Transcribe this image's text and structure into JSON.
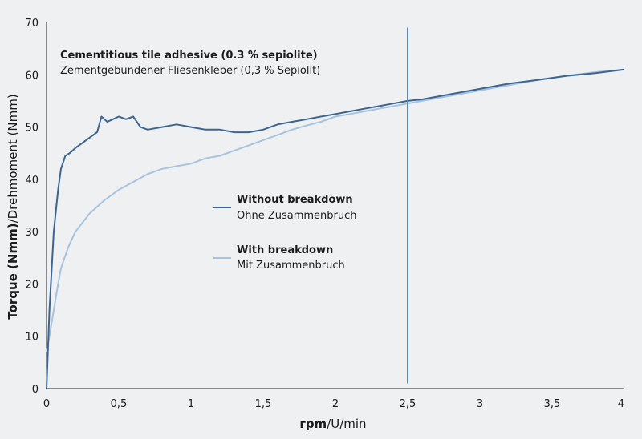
{
  "chart_data": {
    "type": "line",
    "title": "Cementitious tile adhesive (0.3 % sepiolite)",
    "subtitle": "Zementgebundener Fliesenkleber (0,3 % Sepiolit)",
    "xlabel_bold": "rpm",
    "xlabel_rest": "/U/min",
    "ylabel_bold": "Torque (Nmm)",
    "ylabel_rest": "/Drehmoment (Nmm)",
    "xlim": [
      0,
      4
    ],
    "ylim": [
      0,
      70
    ],
    "x_ticks": [
      "0",
      "0,5",
      "1",
      "1,5",
      "2",
      "2,5",
      "3",
      "3,5",
      "4"
    ],
    "y_ticks": [
      "0",
      "10",
      "20",
      "30",
      "40",
      "50",
      "60",
      "70"
    ],
    "grid": false,
    "legend_placement": "center",
    "vertical_line": {
      "x": 2.5,
      "y_range": [
        1,
        69
      ],
      "color": "#5b8bb5"
    },
    "series": [
      {
        "name": "Without breakdown",
        "name_de": "Ohne Zusammenbruch",
        "color": "#3c6591",
        "x": [
          0,
          0.02,
          0.05,
          0.08,
          0.1,
          0.13,
          0.16,
          0.2,
          0.25,
          0.3,
          0.35,
          0.38,
          0.42,
          0.46,
          0.5,
          0.55,
          0.6,
          0.65,
          0.7,
          0.8,
          0.9,
          1.0,
          1.1,
          1.2,
          1.3,
          1.4,
          1.5,
          1.6,
          1.7,
          1.8,
          1.9,
          2.0,
          2.1,
          2.2,
          2.3,
          2.4,
          2.5,
          2.6,
          2.8,
          3.0,
          3.2,
          3.4,
          3.6,
          3.8,
          4.0
        ],
        "y": [
          0,
          15,
          30,
          38,
          42,
          44.5,
          45,
          46,
          47,
          48,
          49,
          52,
          51,
          51.5,
          52,
          51.5,
          52,
          50,
          49.5,
          50,
          50.5,
          50,
          49.5,
          49.5,
          49,
          49,
          49.5,
          50.5,
          51,
          51.5,
          52,
          52.5,
          53,
          53.5,
          54,
          54.5,
          55,
          55.3,
          56.3,
          57.3,
          58.3,
          59,
          59.8,
          60.3,
          61
        ]
      },
      {
        "name": "With breakdown",
        "name_de": "Mit Zusammenbruch",
        "color": "#a9c3de",
        "x": [
          0,
          0.02,
          0.05,
          0.08,
          0.1,
          0.15,
          0.2,
          0.3,
          0.4,
          0.5,
          0.6,
          0.7,
          0.8,
          0.9,
          1.0,
          1.1,
          1.2,
          1.3,
          1.4,
          1.5,
          1.6,
          1.7,
          1.8,
          1.9,
          2.0,
          2.1,
          2.2,
          2.3,
          2.4,
          2.5,
          2.6,
          2.8,
          3.0,
          3.2,
          3.4,
          3.6,
          3.8,
          4.0
        ],
        "y": [
          7,
          10,
          15,
          20,
          23,
          27,
          30,
          33.5,
          36,
          38,
          39.5,
          41,
          42,
          42.5,
          43,
          44,
          44.5,
          45.5,
          46.5,
          47.5,
          48.5,
          49.5,
          50.3,
          51,
          52,
          52.5,
          53,
          53.5,
          54,
          54.5,
          55,
          56,
          57,
          58,
          59,
          59.8,
          60.5,
          61
        ]
      }
    ]
  }
}
